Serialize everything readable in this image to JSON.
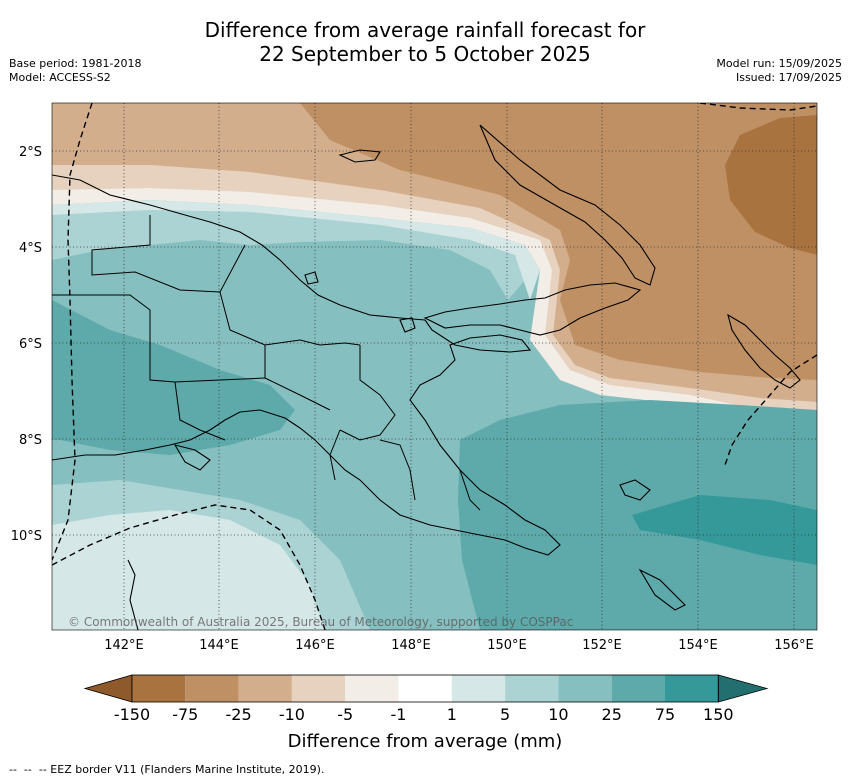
{
  "title": {
    "line1": "Difference from average rainfall forecast for",
    "line2": "22 September to 5 October 2025"
  },
  "meta_left": {
    "base_period": "Base period: 1981-2018",
    "model": "Model: ACCESS-S2"
  },
  "meta_right": {
    "model_run": "Model run: 15/09/2025",
    "issued": "Issued: 17/09/2025"
  },
  "map": {
    "region": "Papua New Guinea",
    "lat_labels": [
      "2°S",
      "4°S",
      "6°S",
      "8°S",
      "10°S"
    ],
    "lon_labels": [
      "142°E",
      "144°E",
      "146°E",
      "148°E",
      "150°E",
      "152°E",
      "154°E",
      "156°E"
    ],
    "copyright": "© Commonwealth of Australia 2025, Bureau of Meteorology, supported by COSPPac",
    "gridlines": true
  },
  "colorbar": {
    "tick_labels": [
      "-150",
      "-75",
      "-25",
      "-10",
      "-5",
      "-1",
      "1",
      "5",
      "10",
      "25",
      "75",
      "150"
    ],
    "colors": [
      "#8e5a2c",
      "#a9733f",
      "#bf9064",
      "#d2ae8c",
      "#e6d2bf",
      "#f2ede6",
      "#ffffff",
      "#d5e8e7",
      "#acd3d3",
      "#86bfbf",
      "#5eaaaa",
      "#35999a",
      "#236e6e"
    ],
    "title": "Difference from average (mm)"
  },
  "legend": {
    "eez_label": "-- EEZ border V11 (Flanders Marine Institute, 2019)."
  }
}
